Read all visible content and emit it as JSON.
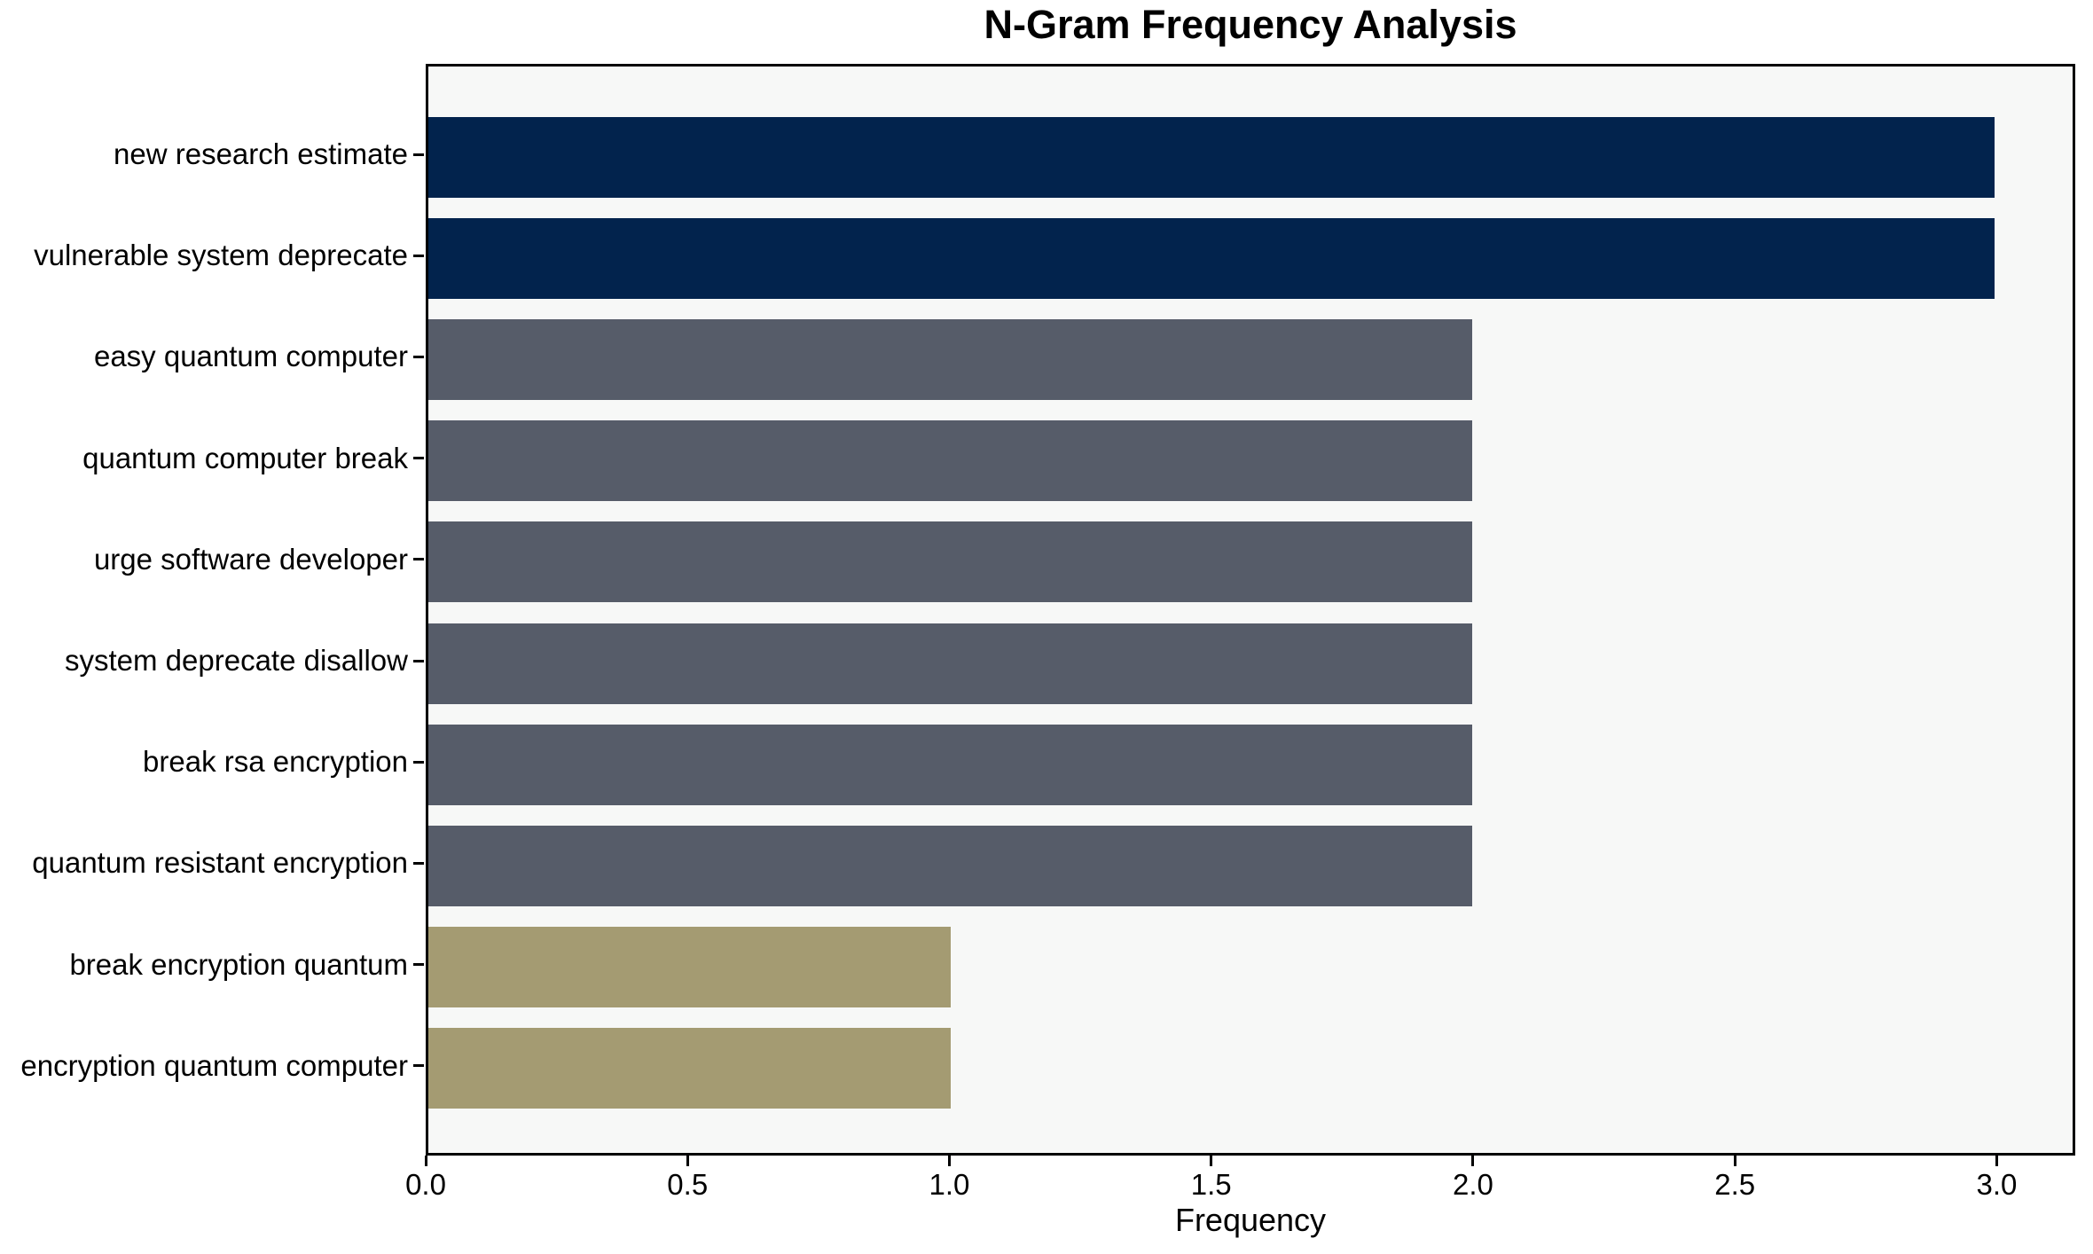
{
  "chart_data": {
    "type": "bar",
    "orientation": "horizontal",
    "title": "N-Gram Frequency Analysis",
    "xlabel": "Frequency",
    "ylabel": "",
    "categories": [
      "new research estimate",
      "vulnerable system deprecate",
      "easy quantum computer",
      "quantum computer break",
      "urge software developer",
      "system deprecate disallow",
      "break rsa encryption",
      "quantum resistant encryption",
      "break encryption quantum",
      "encryption quantum computer"
    ],
    "values": [
      3,
      3,
      2,
      2,
      2,
      2,
      2,
      2,
      1,
      1
    ],
    "bar_colors": [
      "#02234d",
      "#02234d",
      "#565c69",
      "#565c69",
      "#565c69",
      "#565c69",
      "#565c69",
      "#565c69",
      "#a49b72",
      "#a49b72"
    ],
    "xlim": [
      0,
      3.15
    ],
    "xticks": [
      {
        "value": 0.0,
        "label": "0.0"
      },
      {
        "value": 0.5,
        "label": "0.5"
      },
      {
        "value": 1.0,
        "label": "1.0"
      },
      {
        "value": 1.5,
        "label": "1.5"
      },
      {
        "value": 2.0,
        "label": "2.0"
      },
      {
        "value": 2.5,
        "label": "2.5"
      },
      {
        "value": 3.0,
        "label": "3.0"
      }
    ],
    "grid": false,
    "legend": false,
    "plot_background": "#f7f8f7",
    "figure_background": "#ffffff",
    "spine_color": "#000000"
  }
}
